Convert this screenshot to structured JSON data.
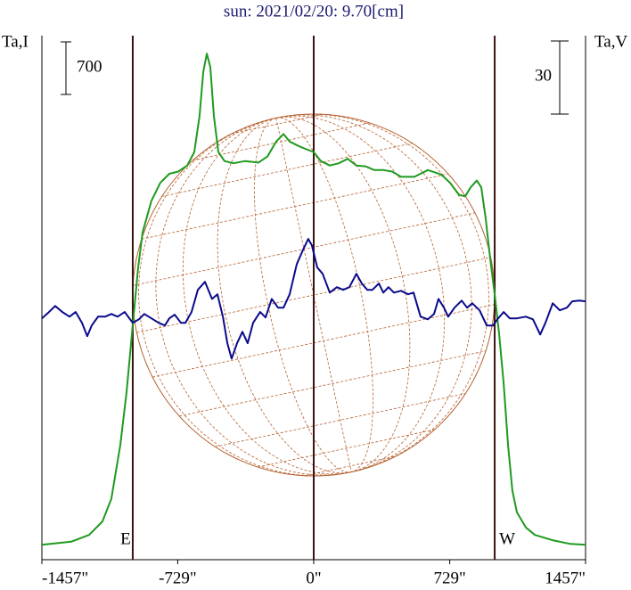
{
  "chart_data": {
    "type": "line",
    "title": "sun: 2021/02/20: 9.70[cm]",
    "ylabel": "Ta,I",
    "y2label": "Ta,V",
    "xlim": [
      -1457,
      1457
    ],
    "xticks": [
      {
        "value": -1457,
        "label": "-1457\""
      },
      {
        "value": -729,
        "label": "-729\""
      },
      {
        "value": 0,
        "label": "0\""
      },
      {
        "value": 729,
        "label": "729\""
      },
      {
        "value": 1457,
        "label": "1457\""
      }
    ],
    "ylim": [
      -200,
      6780
    ],
    "y2lim": [
      -99,
      116
    ],
    "left_scale": 700,
    "right_scale": 30,
    "vlines": [
      {
        "x": -970,
        "label": "E"
      },
      {
        "x": 0
      },
      {
        "x": 970,
        "label": "W"
      }
    ],
    "series": [
      {
        "color": "#1f9a1f",
        "x": [
          -1457,
          -1300,
          -1204,
          -1132,
          -1085,
          -1037,
          -1003,
          -970,
          -941,
          -917,
          -870,
          -822,
          -774,
          -726,
          -678,
          -640,
          -612,
          -592,
          -573,
          -554,
          -535,
          -511,
          -478,
          -430,
          -368,
          -296,
          -248,
          -201,
          -162,
          -129,
          -81,
          -33,
          0,
          38,
          86,
          134,
          182,
          229,
          277,
          325,
          373,
          420,
          468,
          540,
          612,
          683,
          731,
          779,
          812,
          841,
          874,
          898,
          922,
          946,
          970,
          994,
          1018,
          1042,
          1065,
          1089,
          1137,
          1185,
          1280,
          1376,
          1457
        ],
        "values": [
          0,
          40,
          130,
          310,
          610,
          1320,
          2030,
          2920,
          3690,
          4160,
          4580,
          4820,
          4940,
          4970,
          5050,
          5230,
          5710,
          6300,
          6540,
          6360,
          5710,
          5230,
          5110,
          5080,
          5110,
          5090,
          5170,
          5370,
          5470,
          5370,
          5310,
          5260,
          5230,
          5110,
          5050,
          5080,
          5140,
          5050,
          5040,
          4990,
          4990,
          4970,
          4900,
          4900,
          4990,
          4930,
          4820,
          4660,
          4640,
          4760,
          4850,
          4760,
          4340,
          3810,
          3330,
          2800,
          2150,
          1320,
          720,
          430,
          230,
          130,
          60,
          10,
          0
        ]
      },
      {
        "color": "#0a0a8c",
        "axis": "y2",
        "x": [
          -1457,
          -1419,
          -1386,
          -1347,
          -1309,
          -1276,
          -1242,
          -1214,
          -1190,
          -1156,
          -1118,
          -1085,
          -1051,
          -1013,
          -970,
          -937,
          -908,
          -870,
          -831,
          -798,
          -774,
          -745,
          -712,
          -688,
          -655,
          -621,
          -583,
          -545,
          -516,
          -487,
          -463,
          -440,
          -411,
          -382,
          -354,
          -325,
          -287,
          -258,
          -225,
          -191,
          -162,
          -129,
          -91,
          -57,
          -29,
          -10,
          19,
          48,
          86,
          124,
          158,
          191,
          229,
          258,
          287,
          315,
          349,
          373,
          401,
          430,
          468,
          506,
          535,
          573,
          612,
          645,
          669,
          698,
          721,
          755,
          793,
          822,
          850,
          889,
          927,
          961,
          984,
          1018,
          1051,
          1089,
          1137,
          1175,
          1214,
          1242,
          1281,
          1319,
          1357,
          1386,
          1424,
          1457
        ],
        "values": [
          0,
          2.6,
          5.1,
          2.6,
          0.7,
          2.6,
          -1.8,
          -7.3,
          -2.9,
          0.7,
          0.7,
          1.8,
          0.7,
          2.6,
          -1.8,
          -0.4,
          1.8,
          0,
          -1.8,
          -2.9,
          0,
          1.5,
          -1.8,
          -1.8,
          2.6,
          11.7,
          15.0,
          8.0,
          9.9,
          0.7,
          -10.2,
          -16.5,
          -10.2,
          -5.5,
          -10.2,
          -1.8,
          2.6,
          0.4,
          8.0,
          4.4,
          4.4,
          9.9,
          22.3,
          28.2,
          32.6,
          30.0,
          20.9,
          18.3,
          10.6,
          12.8,
          11.7,
          12.8,
          18.3,
          14.3,
          11.7,
          11.7,
          14.3,
          10.6,
          12.8,
          10.6,
          11.3,
          9.9,
          10.6,
          0.7,
          -0.4,
          1.8,
          8.0,
          4.4,
          0.7,
          4.4,
          7.3,
          4.4,
          6.2,
          3.3,
          -2.9,
          -2.9,
          -0.4,
          2.6,
          0,
          0,
          0.7,
          -0.4,
          -6.6,
          -1.8,
          6.2,
          3.3,
          4.4,
          7.0,
          7.3,
          7.0
        ]
      }
    ]
  }
}
